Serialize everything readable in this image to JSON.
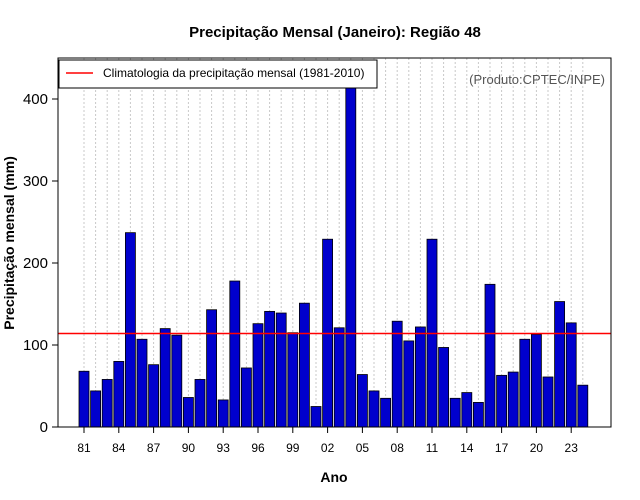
{
  "chart_data": {
    "type": "bar",
    "title": "Precipitação Mensal (Janeiro): Região 48",
    "xlabel": "Ano",
    "ylabel": "Precipitação mensal (mm)",
    "ylim": [
      0,
      450
    ],
    "yticks": [
      0,
      100,
      200,
      300,
      400
    ],
    "xtick_labels": [
      "81",
      "84",
      "87",
      "90",
      "93",
      "96",
      "99",
      "02",
      "05",
      "08",
      "11",
      "14",
      "17",
      "20",
      "23"
    ],
    "categories": [
      "1981",
      "1982",
      "1983",
      "1984",
      "1985",
      "1986",
      "1987",
      "1988",
      "1989",
      "1990",
      "1991",
      "1992",
      "1993",
      "1994",
      "1995",
      "1996",
      "1997",
      "1998",
      "1999",
      "2000",
      "2001",
      "2002",
      "2003",
      "2004",
      "2005",
      "2006",
      "2007",
      "2008",
      "2009",
      "2010",
      "2011",
      "2012",
      "2013",
      "2014",
      "2015",
      "2016",
      "2017",
      "2018",
      "2019",
      "2020",
      "2021",
      "2022",
      "2023",
      "2024"
    ],
    "values": [
      68,
      44,
      58,
      80,
      237,
      107,
      76,
      120,
      112,
      36,
      58,
      143,
      33,
      178,
      72,
      126,
      141,
      139,
      115,
      151,
      25,
      229,
      121,
      443,
      64,
      44,
      35,
      129,
      105,
      122,
      229,
      97,
      35,
      42,
      30,
      174,
      63,
      67,
      107,
      113,
      61,
      153,
      127,
      51
    ],
    "bar_color": "#0000CD",
    "reference_line": {
      "value": 114,
      "color": "#FF0000",
      "label": "Climatologia da precipitação mensal (1981-2010)"
    },
    "legend_position": "top-left",
    "grid": "vertical dotted",
    "credit": "(Produto:CPTEC/INPE)"
  }
}
